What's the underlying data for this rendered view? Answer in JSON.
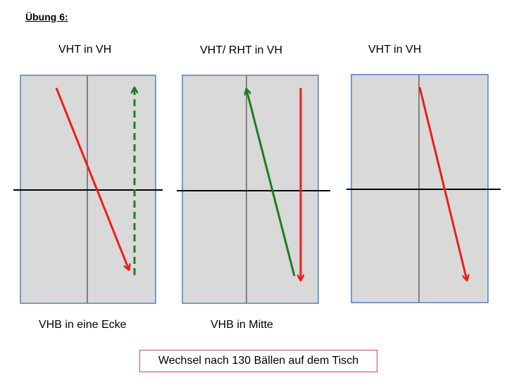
{
  "title": "Übung 6:",
  "panels": [
    {
      "top_label": "VHT in VH",
      "bottom_label": "VHB in eine Ecke",
      "arrows": [
        {
          "style": "solid",
          "color": "#ee1c1c"
        },
        {
          "style": "dashed",
          "color": "#1e7d1e"
        }
      ]
    },
    {
      "top_label": "VHT/ RHT in VH",
      "bottom_label": "VHB in Mitte",
      "arrows": [
        {
          "style": "solid",
          "color": "#1e7d1e"
        },
        {
          "style": "solid",
          "color": "#ee1c1c"
        }
      ]
    },
    {
      "top_label": "VHT in VH",
      "bottom_label": "",
      "arrows": [
        {
          "style": "solid",
          "color": "#ee1c1c"
        }
      ]
    }
  ],
  "note": "Wechsel nach 130 Bällen auf dem Tisch",
  "colors": {
    "table_fill": "#d9d9d9",
    "table_border": "#4f81bd",
    "center_line": "#808080",
    "net": "#000000",
    "note_border": "#c0504d"
  }
}
